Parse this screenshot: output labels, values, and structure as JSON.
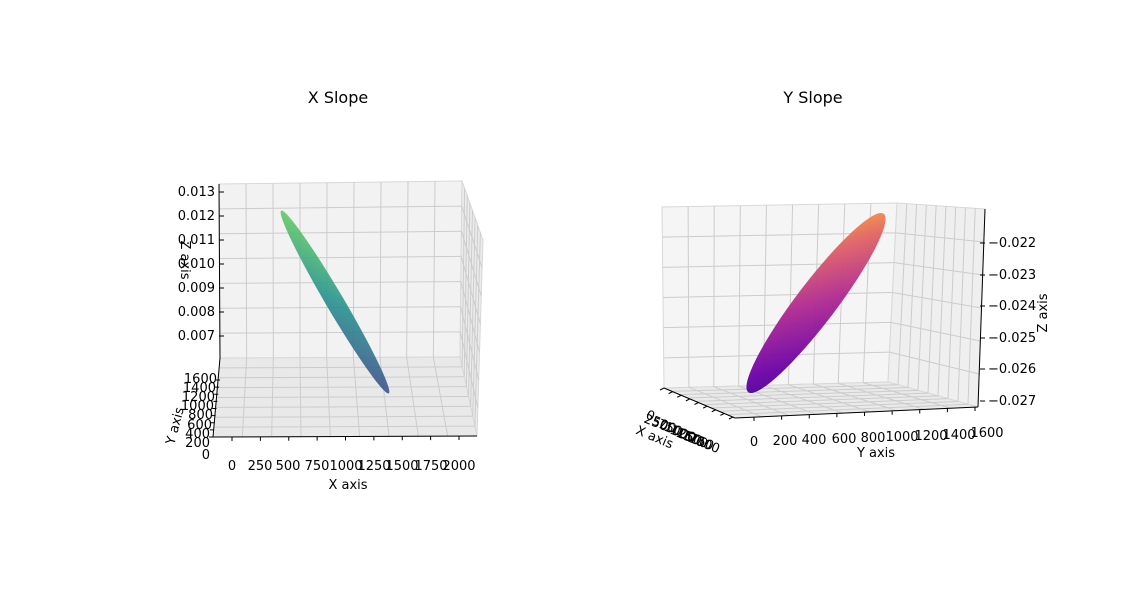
{
  "chart_data": [
    {
      "type": "surface3d",
      "title": "X Slope",
      "xlabel": "X axis",
      "ylabel": "Y axis",
      "zlabel": "Z axis",
      "xticks": [
        "0",
        "250",
        "500",
        "750",
        "1000",
        "1250",
        "1500",
        "1750",
        "2000"
      ],
      "yticks": [
        "0",
        "200",
        "400",
        "600",
        "800",
        "1000",
        "1200",
        "1400",
        "1600"
      ],
      "zticks": [
        "0.007",
        "0.008",
        "0.009",
        "0.010",
        "0.011",
        "0.012",
        "0.013"
      ],
      "xlim": [
        0,
        2100
      ],
      "ylim": [
        0,
        1600
      ],
      "zlim": [
        0.0063,
        0.0131
      ],
      "surface": {
        "shape": "tilted-ellipse",
        "z_range": [
          0.0062,
          0.0121
        ]
      },
      "colormap": "viridis",
      "colors": [
        "#440154",
        "#3b528b",
        "#21918c",
        "#5ec962",
        "#fde725"
      ],
      "grid": true
    },
    {
      "type": "surface3d",
      "title": "Y Slope",
      "xlabel": "X axis",
      "ylabel": "Y axis",
      "zlabel": "Z axis",
      "xticks": [
        "0",
        "250",
        "500",
        "750",
        "1000",
        "1250",
        "1500",
        "1750",
        "2000"
      ],
      "yticks": [
        "0",
        "200",
        "400",
        "600",
        "800",
        "1000",
        "1200",
        "1400",
        "1600"
      ],
      "zticks": [
        "−0.022",
        "−0.023",
        "−0.024",
        "−0.025",
        "−0.026",
        "−0.027"
      ],
      "xlim": [
        0,
        2100
      ],
      "ylim": [
        0,
        1600
      ],
      "zlim": [
        -0.0273,
        -0.0213
      ],
      "surface": {
        "shape": "tilted-ellipse",
        "z_range": [
          -0.027,
          -0.0215
        ]
      },
      "colormap": "plasma",
      "colors": [
        "#0d0887",
        "#6a00a8",
        "#b12a90",
        "#e16462",
        "#fca636",
        "#f0f921"
      ],
      "grid": true
    }
  ]
}
